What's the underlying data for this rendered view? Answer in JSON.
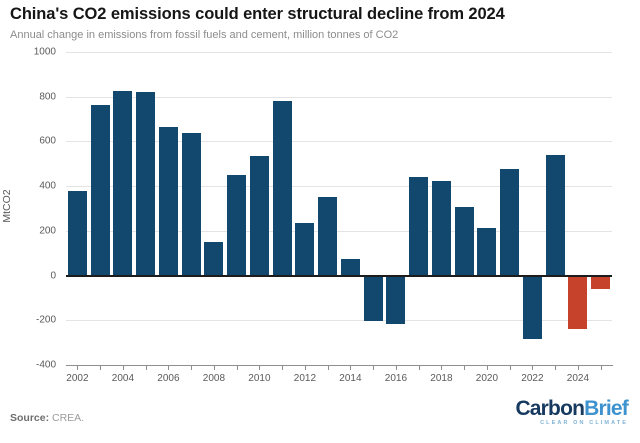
{
  "chart_data": {
    "type": "bar",
    "title": "China's CO2 emissions could enter structural decline from 2024",
    "subtitle": "Annual change in emissions from fossil fuels and cement, million tonnes of CO2",
    "ylabel": "MtCO2",
    "ylim": [
      -400,
      1000
    ],
    "grid": true,
    "yticks": [
      1000,
      800,
      600,
      400,
      200,
      0,
      -200,
      -400
    ],
    "x": [
      2002,
      2003,
      2004,
      2005,
      2006,
      2007,
      2008,
      2009,
      2010,
      2011,
      2012,
      2013,
      2014,
      2015,
      2016,
      2017,
      2018,
      2019,
      2020,
      2021,
      2022,
      2023,
      2024,
      2025
    ],
    "values": [
      380,
      765,
      825,
      820,
      665,
      640,
      150,
      450,
      535,
      780,
      235,
      350,
      75,
      -205,
      -215,
      440,
      425,
      305,
      215,
      475,
      -285,
      540,
      -240,
      -60
    ],
    "xtick_labels": [
      "2002",
      "2004",
      "2006",
      "2008",
      "2010",
      "2012",
      "2014",
      "2016",
      "2018",
      "2020",
      "2022",
      "2024"
    ],
    "bar_color": "#12486e",
    "highlight_color": "#c7422a",
    "highlight_x": [
      2024,
      2025
    ]
  },
  "footer": {
    "source_label": "Source:",
    "source_value": "CREA.",
    "logo": {
      "part1": "Carbon",
      "part2": "Brief",
      "tagline": "CLEAR ON CLIMATE"
    }
  }
}
